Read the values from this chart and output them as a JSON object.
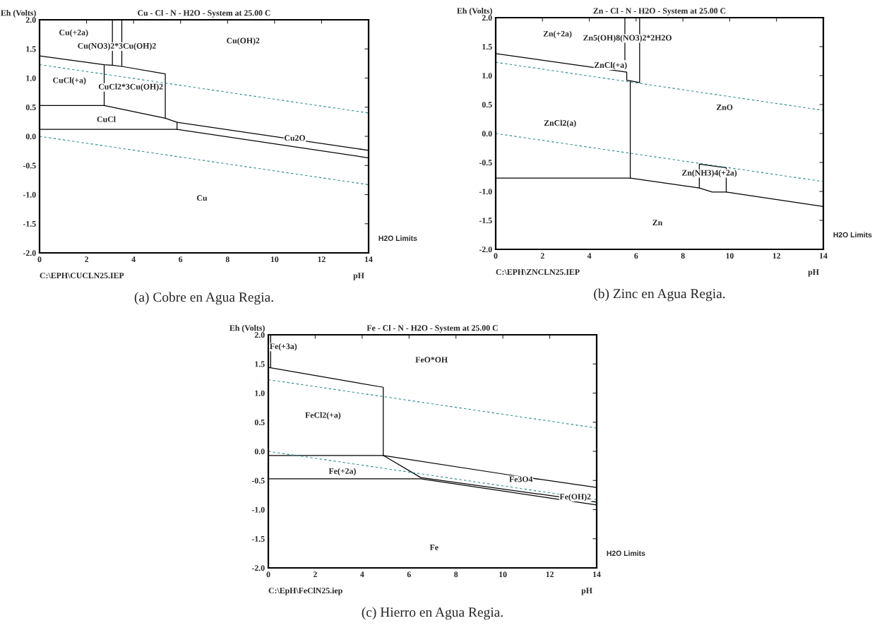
{
  "chart_data": [
    {
      "type": "line",
      "title": "Cu - Cl - N - H2O - System at 25.00 C",
      "xlabel": "pH",
      "ylabel": "Eh (Volts)",
      "xlim": [
        0,
        14
      ],
      "xticks": [
        0,
        2,
        4,
        6,
        8,
        10,
        12,
        14
      ],
      "ylim": [
        -2.0,
        2.0
      ],
      "yticks": [
        {
          "value": -2.0,
          "label": "-2.0"
        },
        {
          "value": -1.5,
          "label": "-1.5"
        },
        {
          "value": -1.0,
          "label": "-1.0"
        },
        {
          "value": -0.5,
          "label": "-0.5"
        },
        {
          "value": 0.0,
          "label": "0.0"
        },
        {
          "value": 0.5,
          "label": "0.5"
        },
        {
          "value": 1.0,
          "label": "1.0"
        },
        {
          "value": 1.5,
          "label": "1.5"
        },
        {
          "value": 2.0,
          "label": "2.0"
        }
      ],
      "grid": false,
      "series": [
        {
          "color": "#000000",
          "x": [
            0,
            2.75,
            3.1,
            3.5,
            5.35,
            5.35,
            5.85,
            14
          ],
          "values": [
            1.38,
            1.23,
            1.22,
            1.2,
            1.07,
            0.31,
            0.24,
            -0.24
          ]
        },
        {
          "color": "#000000",
          "x": [
            3.1,
            3.1
          ],
          "values": [
            1.22,
            2.0
          ]
        },
        {
          "color": "#000000",
          "x": [
            3.5,
            3.5
          ],
          "values": [
            1.2,
            2.0
          ]
        },
        {
          "color": "#000000",
          "x": [
            0,
            2.75,
            2.75
          ],
          "values": [
            0.53,
            0.53,
            1.23
          ]
        },
        {
          "color": "#000000",
          "x": [
            2.75,
            5.35
          ],
          "values": [
            0.53,
            0.31
          ]
        },
        {
          "color": "#000000",
          "x": [
            0,
            5.85,
            14
          ],
          "values": [
            0.12,
            0.12,
            -0.37
          ]
        },
        {
          "color": "#000000",
          "x": [
            5.85,
            5.85
          ],
          "values": [
            0.24,
            0.12
          ]
        },
        {
          "color": "#2e8b8b",
          "line_style": "dashed",
          "x": [
            0,
            14
          ],
          "values": [
            1.23,
            0.4
          ]
        },
        {
          "color": "#2e8b8b",
          "line_style": "dashed",
          "x": [
            0,
            14
          ],
          "values": [
            0.0,
            -0.83
          ]
        }
      ],
      "annotations": [
        "C:\\EPH\\CUCLN25.IEP",
        "H2O Limits",
        "(a) Cobre en Agua Regia.",
        "Cu(+2a)",
        "Cu(NO3)2*3Cu(OH)2",
        "Cu(OH)2",
        "CuCl(+a)",
        "CuCl2*3Cu(OH)2",
        "CuCl",
        "Cu2O",
        "Cu"
      ]
    },
    {
      "type": "line",
      "title": "Zn - Cl - N - H2O - System at 25.00 C",
      "xlabel": "pH",
      "ylabel": "Eh (Volts)",
      "xlim": [
        0,
        14
      ],
      "xticks": [
        0,
        2,
        4,
        6,
        8,
        10,
        12,
        14
      ],
      "ylim": [
        -2.0,
        2.0
      ],
      "yticks": [
        {
          "value": -2.0,
          "label": "-2.0"
        },
        {
          "value": -1.5,
          "label": "-1.5"
        },
        {
          "value": -1.0,
          "label": "-1.0"
        },
        {
          "value": -0.5,
          "label": "-0.5"
        },
        {
          "value": 0.0,
          "label": "0.0"
        },
        {
          "value": 0.5,
          "label": "0.5"
        },
        {
          "value": 1.0,
          "label": "1.0"
        },
        {
          "value": 1.5,
          "label": "1.5"
        },
        {
          "value": 2.0,
          "label": "2.0"
        }
      ],
      "grid": false,
      "series": [
        {
          "color": "#000000",
          "x": [
            0,
            5.6,
            5.6,
            5.75,
            6.15,
            6.15
          ],
          "values": [
            1.38,
            1.06,
            0.92,
            0.91,
            0.88,
            2.0
          ]
        },
        {
          "color": "#000000",
          "x": [
            5.52,
            5.52
          ],
          "values": [
            2.0,
            1.27
          ]
        },
        {
          "color": "#000000",
          "x": [
            5.75,
            5.75
          ],
          "values": [
            0.91,
            -0.77
          ]
        },
        {
          "color": "#000000",
          "x": [
            0,
            5.75,
            8.7,
            9.25,
            9.85,
            14
          ],
          "values": [
            -0.77,
            -0.77,
            -0.94,
            -1.01,
            -1.01,
            -1.26
          ]
        },
        {
          "color": "#000000",
          "x": [
            8.7,
            8.7,
            9.85,
            9.85
          ],
          "values": [
            -0.94,
            -0.53,
            -0.59,
            -1.01
          ]
        },
        {
          "color": "#2e8b8b",
          "line_style": "dashed",
          "x": [
            0,
            14
          ],
          "values": [
            1.23,
            0.4
          ]
        },
        {
          "color": "#2e8b8b",
          "line_style": "dashed",
          "x": [
            0,
            14
          ],
          "values": [
            0.0,
            -0.83
          ]
        }
      ],
      "annotations": [
        "C:\\EPH\\ZNCLN25.IEP",
        "H2O Limits",
        "(b) Zinc en Agua Regia.",
        "Zn(+2a)",
        "Zn5(OH)8(NO3)2*2H2O",
        "ZnCl(+a)",
        "ZnO",
        "ZnCl2(a)",
        "Zn(NH3)4(+2a)",
        "Zn"
      ]
    },
    {
      "type": "line",
      "title": "Fe - Cl - N - H2O - System at 25.00 C",
      "xlabel": "pH",
      "ylabel": "Eh (Volts)",
      "xlim": [
        0,
        14
      ],
      "xticks": [
        0,
        2,
        4,
        6,
        8,
        10,
        12,
        14
      ],
      "ylim": [
        -2.0,
        2.0
      ],
      "yticks": [
        {
          "value": -2.0,
          "label": "-2.0"
        },
        {
          "value": -1.5,
          "label": "-1.5"
        },
        {
          "value": -1.0,
          "label": "-1.0"
        },
        {
          "value": -0.5,
          "label": "-0.5"
        },
        {
          "value": 0.0,
          "label": "0.0"
        },
        {
          "value": 0.5,
          "label": "0.5"
        },
        {
          "value": 1.0,
          "label": "1.0"
        },
        {
          "value": 1.5,
          "label": "1.5"
        },
        {
          "value": 2.0,
          "label": "2.0"
        }
      ],
      "grid": false,
      "series": [
        {
          "color": "#000000",
          "x": [
            0.1,
            0.1
          ],
          "values": [
            2.0,
            1.44
          ]
        },
        {
          "color": "#000000",
          "x": [
            0,
            4.9,
            4.9
          ],
          "values": [
            1.44,
            1.1,
            -0.07
          ]
        },
        {
          "color": "#000000",
          "x": [
            0,
            4.9,
            10.2,
            14
          ],
          "values": [
            -0.07,
            -0.07,
            -0.4,
            -0.62
          ]
        },
        {
          "color": "#000000",
          "x": [
            4.9,
            6.5,
            14
          ],
          "values": [
            -0.07,
            -0.45,
            -0.87
          ]
        },
        {
          "color": "#000000",
          "x": [
            0,
            6.5,
            14
          ],
          "values": [
            -0.47,
            -0.47,
            -0.92
          ]
        },
        {
          "color": "#2e8b8b",
          "line_style": "dashed",
          "x": [
            0,
            14
          ],
          "values": [
            1.23,
            0.4
          ]
        },
        {
          "color": "#2e8b8b",
          "line_style": "dashed",
          "x": [
            0,
            14
          ],
          "values": [
            0.0,
            -0.83
          ]
        }
      ],
      "annotations": [
        "C:\\EpH\\FeClN25.iep",
        "H2O Limits",
        "(c) Hierro en Agua Regia.",
        "Fe(+3a)",
        "FeO*OH",
        "FeCl2(+a)",
        "Fe(+2a)",
        "Fe3O4",
        "Fe(OH)2",
        "Fe"
      ]
    }
  ]
}
